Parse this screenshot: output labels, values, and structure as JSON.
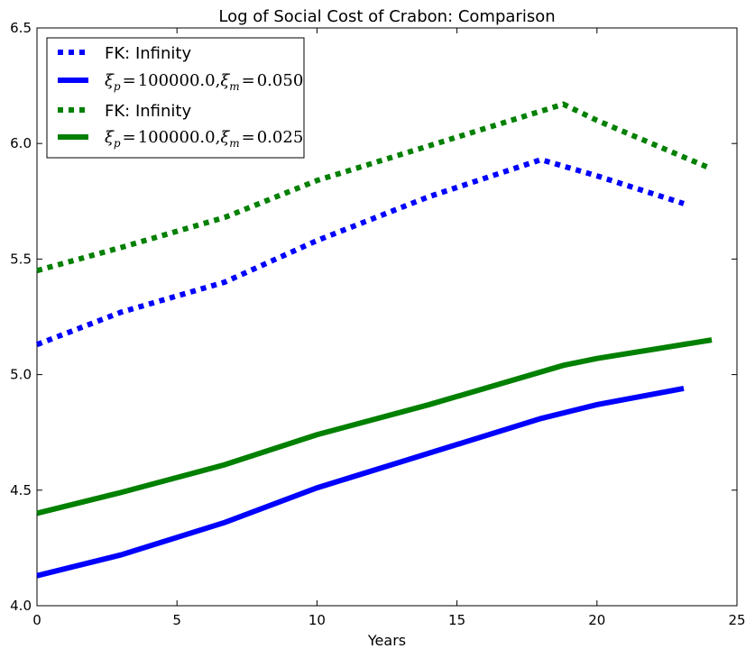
{
  "chart_data": {
    "type": "line",
    "title": "Log of Social Cost of Crabon: Comparison",
    "xlabel": "Years",
    "ylabel": "",
    "xlim": [
      0,
      25
    ],
    "ylim": [
      4.0,
      6.5
    ],
    "xticks": [
      "0",
      "5",
      "10",
      "15",
      "20",
      "25"
    ],
    "yticks": [
      "4.0",
      "4.5",
      "5.0",
      "5.5",
      "6.0",
      "6.5"
    ],
    "grid": false,
    "legend_position": "top-left",
    "series": [
      {
        "name": "FK: Infinity",
        "color": "#0000ff",
        "style": "dotted",
        "x": [
          0,
          3,
          6.7,
          10,
          14,
          18,
          20,
          23.1
        ],
        "y": [
          5.13,
          5.27,
          5.4,
          5.58,
          5.77,
          5.93,
          5.86,
          5.74
        ]
      },
      {
        "name": "ξp = 100000.0, ξm = 0.050",
        "color": "#0000ff",
        "style": "solid",
        "x": [
          0,
          3,
          6.7,
          10,
          14,
          18,
          20,
          23.1
        ],
        "y": [
          4.13,
          4.22,
          4.36,
          4.51,
          4.66,
          4.81,
          4.87,
          4.94
        ]
      },
      {
        "name": "FK: Infinity",
        "color": "#008000",
        "style": "dotted",
        "x": [
          0,
          3,
          6.7,
          10,
          14,
          18.8,
          20,
          24.1
        ],
        "y": [
          5.45,
          5.55,
          5.68,
          5.84,
          5.99,
          6.17,
          6.1,
          5.89
        ]
      },
      {
        "name": "ξp = 100000.0, ξm = 0.025",
        "color": "#008000",
        "style": "solid",
        "x": [
          0,
          3,
          6.7,
          10,
          14,
          18.8,
          20,
          24.1
        ],
        "y": [
          4.4,
          4.49,
          4.61,
          4.74,
          4.87,
          5.04,
          5.07,
          5.15
        ]
      }
    ]
  },
  "legend": {
    "entries": [
      {
        "kind": "text",
        "label": "FK: Infinity"
      },
      {
        "kind": "math",
        "label": "ξp = 100000.0, ξm = 0.050",
        "xi_p_value": "100000.0",
        "xi_m_value": "0.050",
        "sub_p": "p",
        "sub_m": "m",
        "symbol": "ξ",
        "eq": "=",
        "comma": ","
      },
      {
        "kind": "text",
        "label": "FK: Infinity"
      },
      {
        "kind": "math",
        "label": "ξp = 100000.0, ξm = 0.025",
        "xi_p_value": "100000.0",
        "xi_m_value": "0.025",
        "sub_p": "p",
        "sub_m": "m",
        "symbol": "ξ",
        "eq": "=",
        "comma": ","
      }
    ]
  }
}
